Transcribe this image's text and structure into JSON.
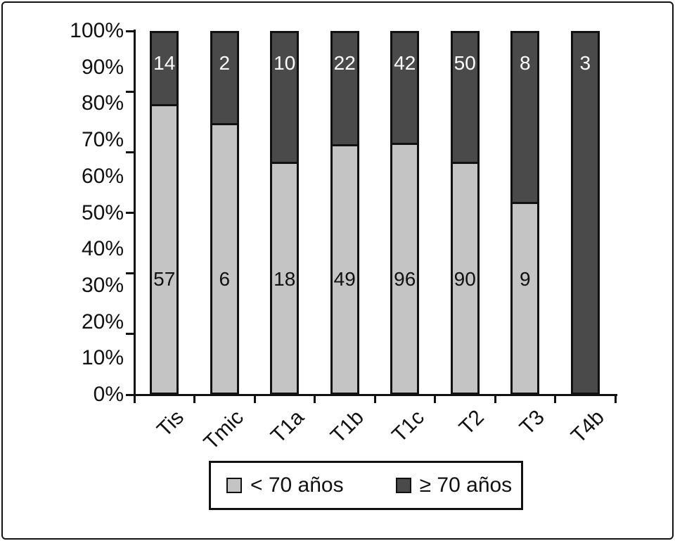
{
  "chart_data": {
    "type": "bar",
    "variant": "100-percent-stacked-column",
    "title": "",
    "xlabel": "",
    "ylabel": "",
    "categories": [
      "Tis",
      "Tmic",
      "T1a",
      "T1b",
      "T1c",
      "T2",
      "T3",
      "T4b"
    ],
    "series": [
      {
        "name": "< 70 años",
        "color": "#c4c4c4",
        "label_color": "#111111",
        "values": [
          57,
          6,
          18,
          49,
          96,
          90,
          9,
          0
        ]
      },
      {
        "name": "≥ 70 años",
        "color": "#4a4a4a",
        "label_color": "#ffffff",
        "values": [
          14,
          2,
          10,
          22,
          42,
          50,
          8,
          3
        ]
      }
    ],
    "y_axis": {
      "min": 0,
      "max": 100,
      "unit": "%",
      "tick_labels": [
        "100%",
        "90%",
        "80%",
        "70%",
        "60%",
        "50%",
        "40%",
        "30%",
        "20%",
        "10%",
        "0%"
      ]
    },
    "grid": false,
    "legend": {
      "position": "bottom",
      "items": [
        "< 70 años",
        "≥ 70 años"
      ]
    }
  },
  "colors": {
    "under70_fill": "#c4c4c4",
    "over70_fill": "#4a4a4a",
    "axis": "#111111",
    "frame_border": "#111111",
    "background": "#ffffff"
  }
}
